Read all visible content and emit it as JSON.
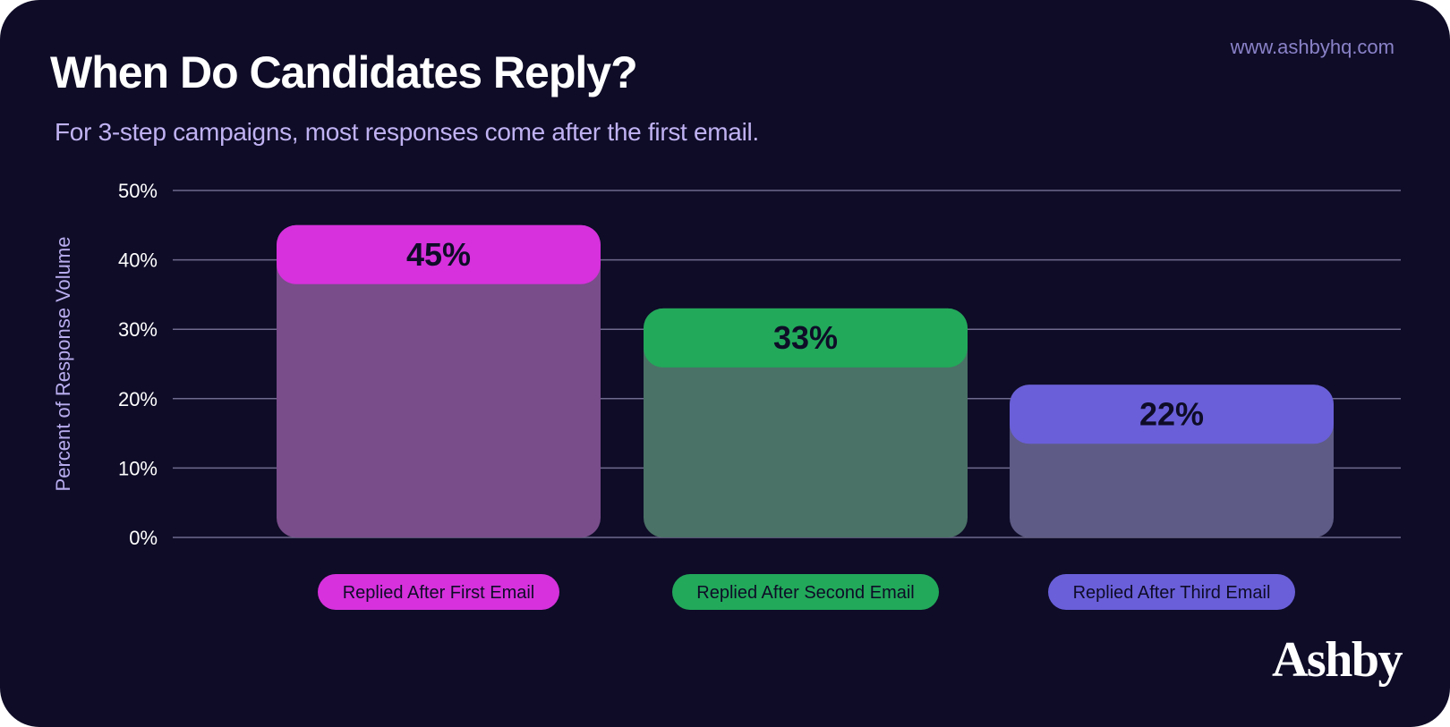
{
  "header": {
    "title": "When Do Candidates Reply?",
    "subtitle": "For 3-step campaigns, most responses come after the first email.",
    "url": "www.ashbyhq.com"
  },
  "brand": {
    "logo_text": "Ashby"
  },
  "colors": {
    "background": "#0e0c27",
    "grid": "#6f6a8e",
    "tick_text": "#ffffff",
    "ylabel_text": "#b8acee",
    "value_text": "#0e0c27"
  },
  "chart_data": {
    "type": "bar",
    "title": "When Do Candidates Reply?",
    "subtitle": "For 3-step campaigns, most responses come after the first email.",
    "xlabel": "",
    "ylabel": "Percent of Response Volume",
    "ylim": [
      0,
      50
    ],
    "yticks": [
      0,
      10,
      20,
      30,
      40,
      50
    ],
    "ytick_labels": [
      "0%",
      "10%",
      "20%",
      "30%",
      "40%",
      "50%"
    ],
    "grid": true,
    "categories": [
      "Replied After First Email",
      "Replied After Second Email",
      "Replied After Third Email"
    ],
    "values": [
      45,
      33,
      22
    ],
    "value_labels": [
      "45%",
      "33%",
      "22%"
    ],
    "bar_colors": [
      "#d631dc",
      "#22a95a",
      "#6a5fd9"
    ],
    "bar_body_colors": [
      "#794d8a",
      "#4a7266",
      "#5e5b86"
    ]
  }
}
